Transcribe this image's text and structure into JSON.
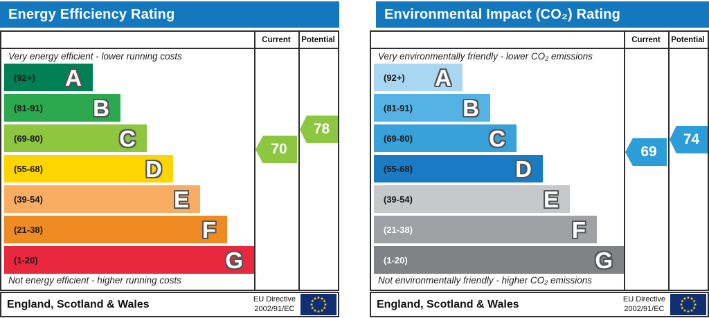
{
  "footer": {
    "region": "England, Scotland & Wales",
    "directive_line1": "EU Directive",
    "directive_line2": "2002/91/EC"
  },
  "eu_flag": {
    "background": "#0f2f72",
    "stars": "#f5cf1b"
  },
  "chart_data": [
    {
      "type": "bar",
      "title": "Energy Efficiency Rating",
      "header_color": "#1478be",
      "columns": {
        "current": "Current",
        "potential": "Potential"
      },
      "top_caption": "Very energy efficient - lower running costs",
      "bottom_caption": "Not energy efficient - higher running costs",
      "scale_range": [
        1,
        100
      ],
      "bands": [
        {
          "letter": "A",
          "range_label": "(92+)",
          "min": 92,
          "max": 100,
          "color": "#008054",
          "label_color": "#1a1a1a"
        },
        {
          "letter": "B",
          "range_label": "(81-91)",
          "min": 81,
          "max": 91,
          "color": "#2ca94f",
          "label_color": "#1a1a1a"
        },
        {
          "letter": "C",
          "range_label": "(69-80)",
          "min": 69,
          "max": 80,
          "color": "#8ec63f",
          "label_color": "#1a1a1a"
        },
        {
          "letter": "D",
          "range_label": "(55-68)",
          "min": 55,
          "max": 68,
          "color": "#fed401",
          "label_color": "#1a1a1a"
        },
        {
          "letter": "E",
          "range_label": "(39-54)",
          "min": 39,
          "max": 54,
          "color": "#f9ad63",
          "label_color": "#1a1a1a"
        },
        {
          "letter": "F",
          "range_label": "(21-38)",
          "min": 21,
          "max": 38,
          "color": "#ee8b22",
          "label_color": "#1a1a1a"
        },
        {
          "letter": "G",
          "range_label": "(1-20)",
          "min": 1,
          "max": 20,
          "color": "#e9283e",
          "label_color": "#1a1a1a"
        }
      ],
      "current": {
        "value": 70,
        "color": "#8dc63f"
      },
      "potential": {
        "value": 78,
        "color": "#8dc63f"
      }
    },
    {
      "type": "bar",
      "title": "Environmental Impact (CO₂) Rating",
      "header_color": "#1478be",
      "columns": {
        "current": "Current",
        "potential": "Potential"
      },
      "top_caption": "Very environmentally friendly - lower CO₂ emissions",
      "bottom_caption": "Not environmentally friendly - higher CO₂ emissions",
      "scale_range": [
        1,
        100
      ],
      "bands": [
        {
          "letter": "A",
          "range_label": "(92+)",
          "min": 92,
          "max": 100,
          "color": "#a9d6f1",
          "label_color": "#1a1a1a"
        },
        {
          "letter": "B",
          "range_label": "(81-91)",
          "min": 81,
          "max": 91,
          "color": "#54b2e4",
          "label_color": "#1a1a1a"
        },
        {
          "letter": "C",
          "range_label": "(69-80)",
          "min": 69,
          "max": 80,
          "color": "#38a1da",
          "label_color": "#1a1a1a"
        },
        {
          "letter": "D",
          "range_label": "(55-68)",
          "min": 55,
          "max": 68,
          "color": "#1a7bc4",
          "label_color": "#1a1a1a"
        },
        {
          "letter": "E",
          "range_label": "(39-54)",
          "min": 39,
          "max": 54,
          "color": "#c7c8ca",
          "label_color": "#1a1a1a"
        },
        {
          "letter": "F",
          "range_label": "(21-38)",
          "min": 21,
          "max": 38,
          "color": "#9fa1a4",
          "label_color": "#ffffff"
        },
        {
          "letter": "G",
          "range_label": "(1-20)",
          "min": 1,
          "max": 20,
          "color": "#808285",
          "label_color": "#ffffff"
        }
      ],
      "current": {
        "value": 69,
        "color": "#2d9dd9"
      },
      "potential": {
        "value": 74,
        "color": "#2d9dd9"
      }
    }
  ]
}
